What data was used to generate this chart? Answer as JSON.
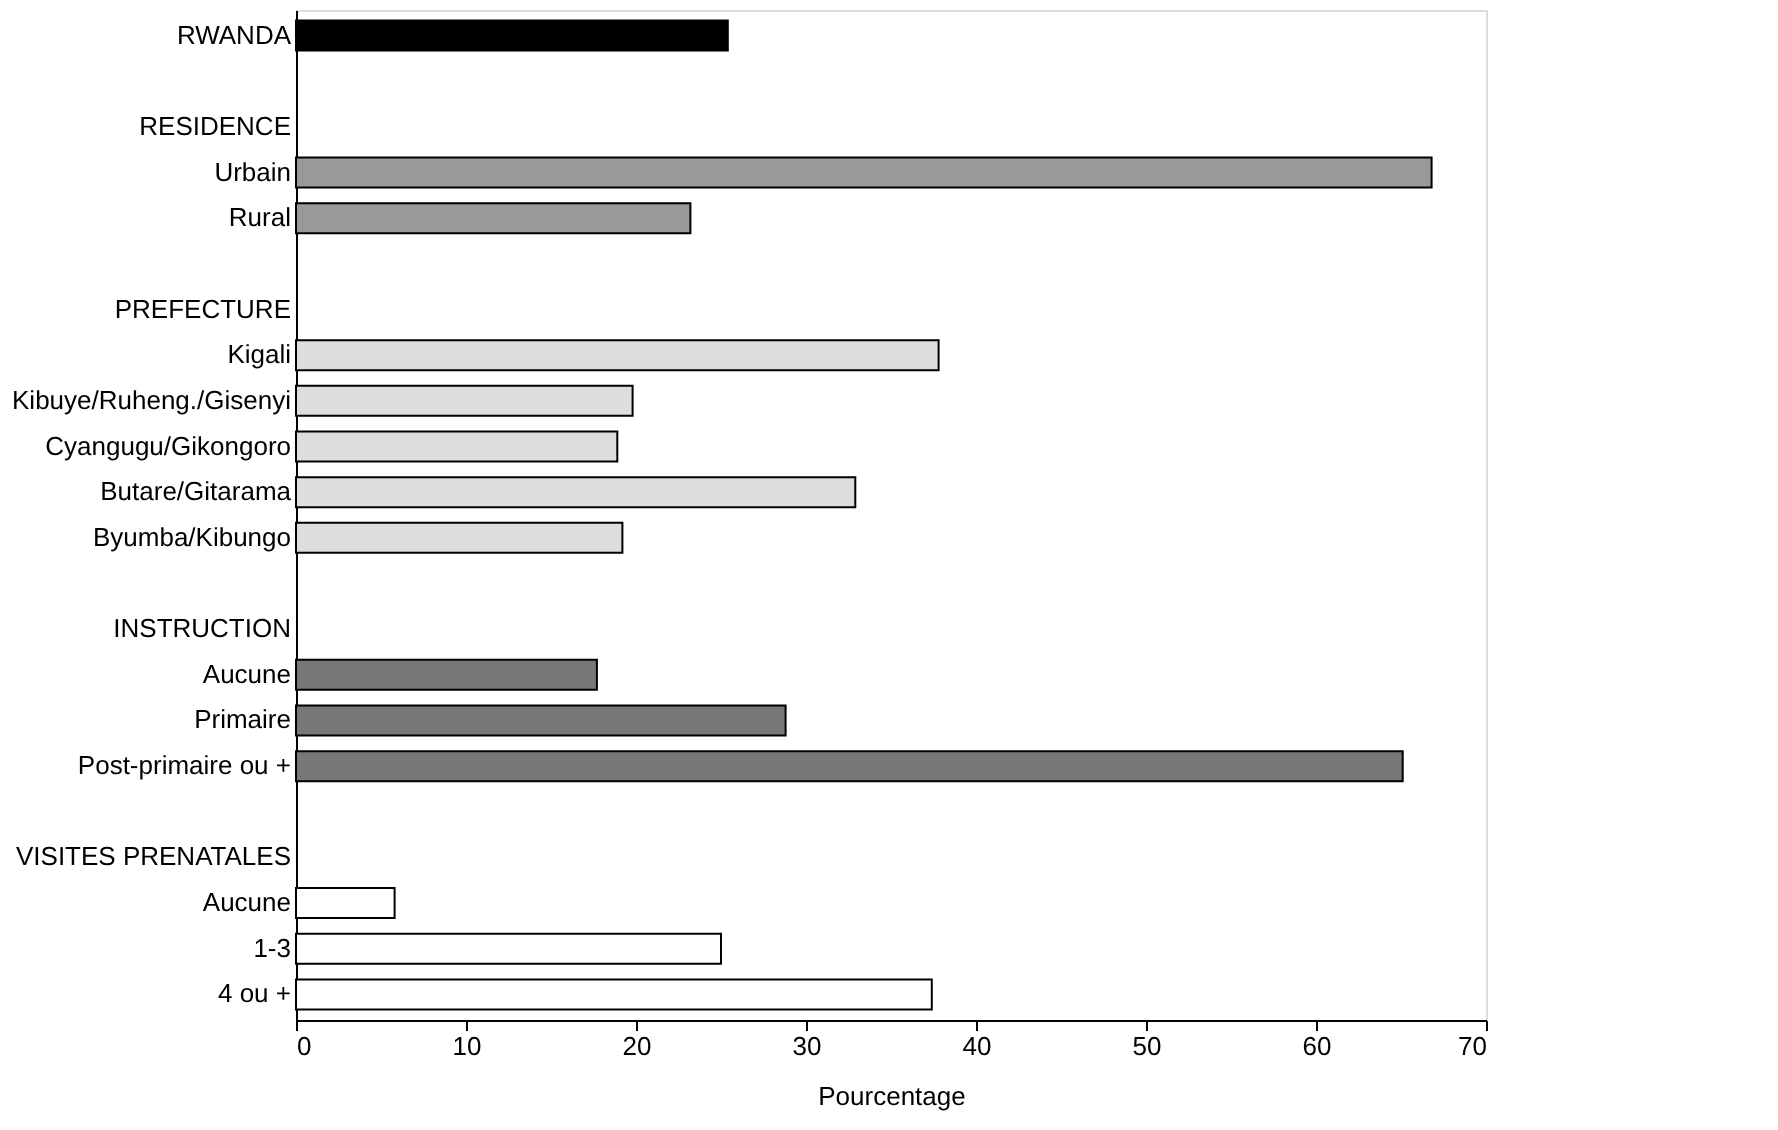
{
  "chart_data": {
    "type": "bar",
    "orientation": "horizontal",
    "xlabel": "Pourcentage",
    "categories": [
      "RWANDA",
      null,
      "RESIDENCE",
      "Urbain",
      "Rural",
      null,
      "PREFECTURE",
      "Kigali",
      "Kibuye/Ruheng./Gisenyi",
      "Cyangugu/Gikongoro",
      "Butare/Gitarama",
      "Byumba/Kibungo",
      null,
      "INSTRUCTION",
      "Aucune",
      "Primaire",
      "Post-primaire ou +",
      null,
      "VISITES PRENATALES",
      "Aucune",
      "1-3",
      "4 ou +"
    ],
    "values": [
      25.4,
      null,
      null,
      66.8,
      23.2,
      null,
      null,
      37.8,
      19.8,
      18.9,
      32.9,
      19.2,
      null,
      null,
      17.7,
      28.8,
      65.1,
      null,
      null,
      5.8,
      25.0,
      37.4
    ],
    "colors": [
      "#000000",
      null,
      null,
      "#999999",
      "#999999",
      null,
      null,
      "#dddddd",
      "#dddddd",
      "#dddddd",
      "#dddddd",
      "#dddddd",
      null,
      null,
      "#777777",
      "#777777",
      "#777777",
      null,
      null,
      "#ffffff",
      "#ffffff",
      "#ffffff"
    ],
    "xlim": [
      0,
      70
    ],
    "xticks": [
      0,
      10,
      20,
      30,
      40,
      50,
      60,
      70
    ],
    "grid": false
  }
}
